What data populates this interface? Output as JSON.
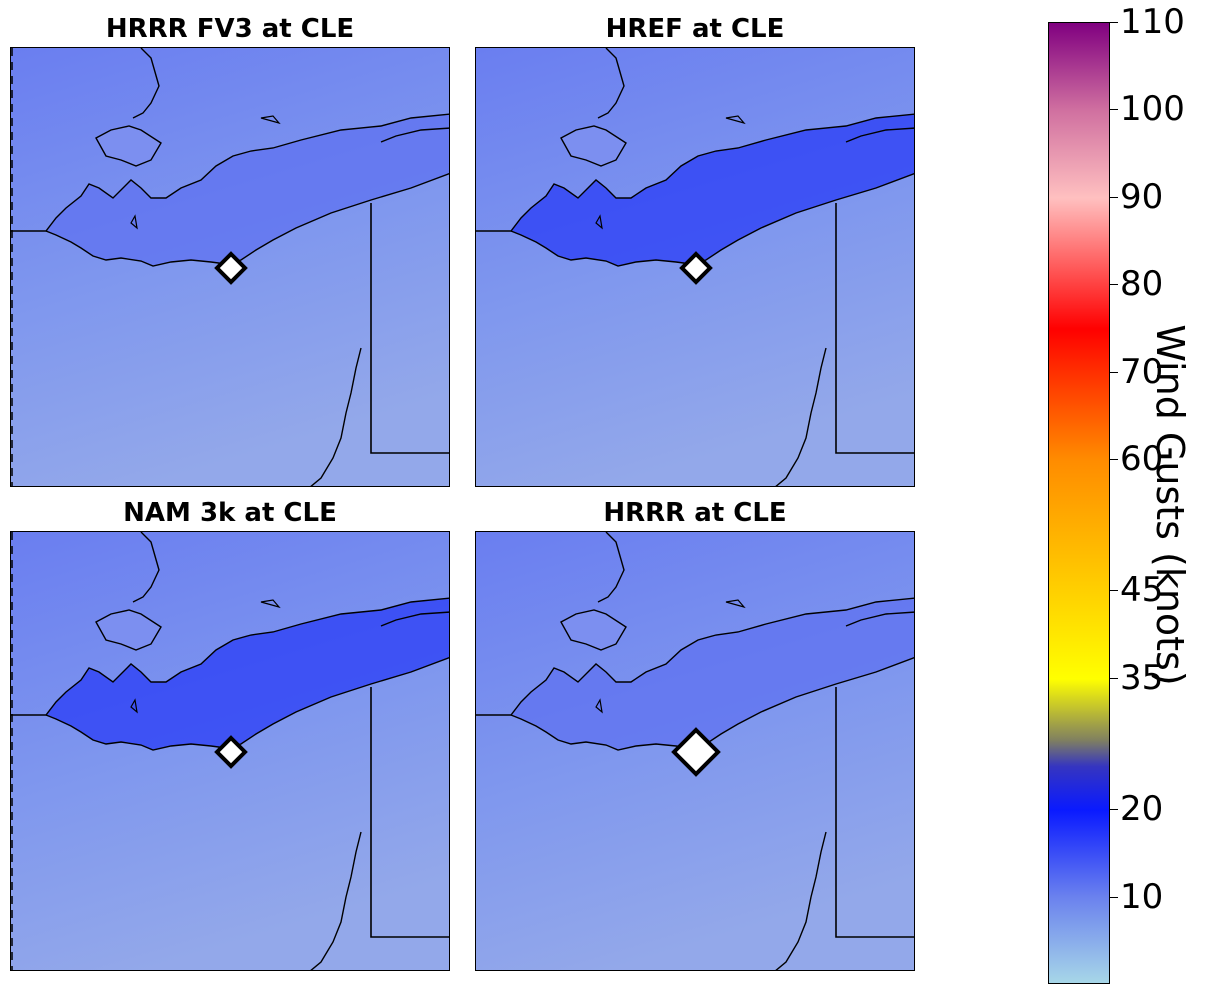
{
  "panels": [
    {
      "title": "HRRR FV3 at CLE"
    },
    {
      "title": "HREF at CLE"
    },
    {
      "title": "NAM 3k at CLE"
    },
    {
      "title": "HRRR at CLE"
    }
  ],
  "colorbar": {
    "label": "Wind Gusts (knots)",
    "min": 0,
    "max": 110,
    "ticks": [
      10,
      20,
      35,
      45,
      60,
      70,
      80,
      90,
      100,
      110
    ],
    "stops": [
      {
        "value": 0,
        "color": "#a8d8e8"
      },
      {
        "value": 10,
        "color": "#6b82ee"
      },
      {
        "value": 20,
        "color": "#0a1aff"
      },
      {
        "value": 25,
        "color": "#3535c0"
      },
      {
        "value": 28,
        "color": "#808060"
      },
      {
        "value": 35,
        "color": "#ffff00"
      },
      {
        "value": 45,
        "color": "#ffd000"
      },
      {
        "value": 60,
        "color": "#ff8c00"
      },
      {
        "value": 70,
        "color": "#ff3000"
      },
      {
        "value": 75,
        "color": "#ff0000"
      },
      {
        "value": 85,
        "color": "#ff8080"
      },
      {
        "value": 90,
        "color": "#ffc0c0"
      },
      {
        "value": 100,
        "color": "#d070a0"
      },
      {
        "value": 110,
        "color": "#800080"
      }
    ]
  },
  "colors": {
    "land": "#7f97ee",
    "lake": "#5f72f0",
    "lake_strong": "#2a3cf6",
    "outline": "#000000",
    "marker_fill": "#ffffff"
  }
}
